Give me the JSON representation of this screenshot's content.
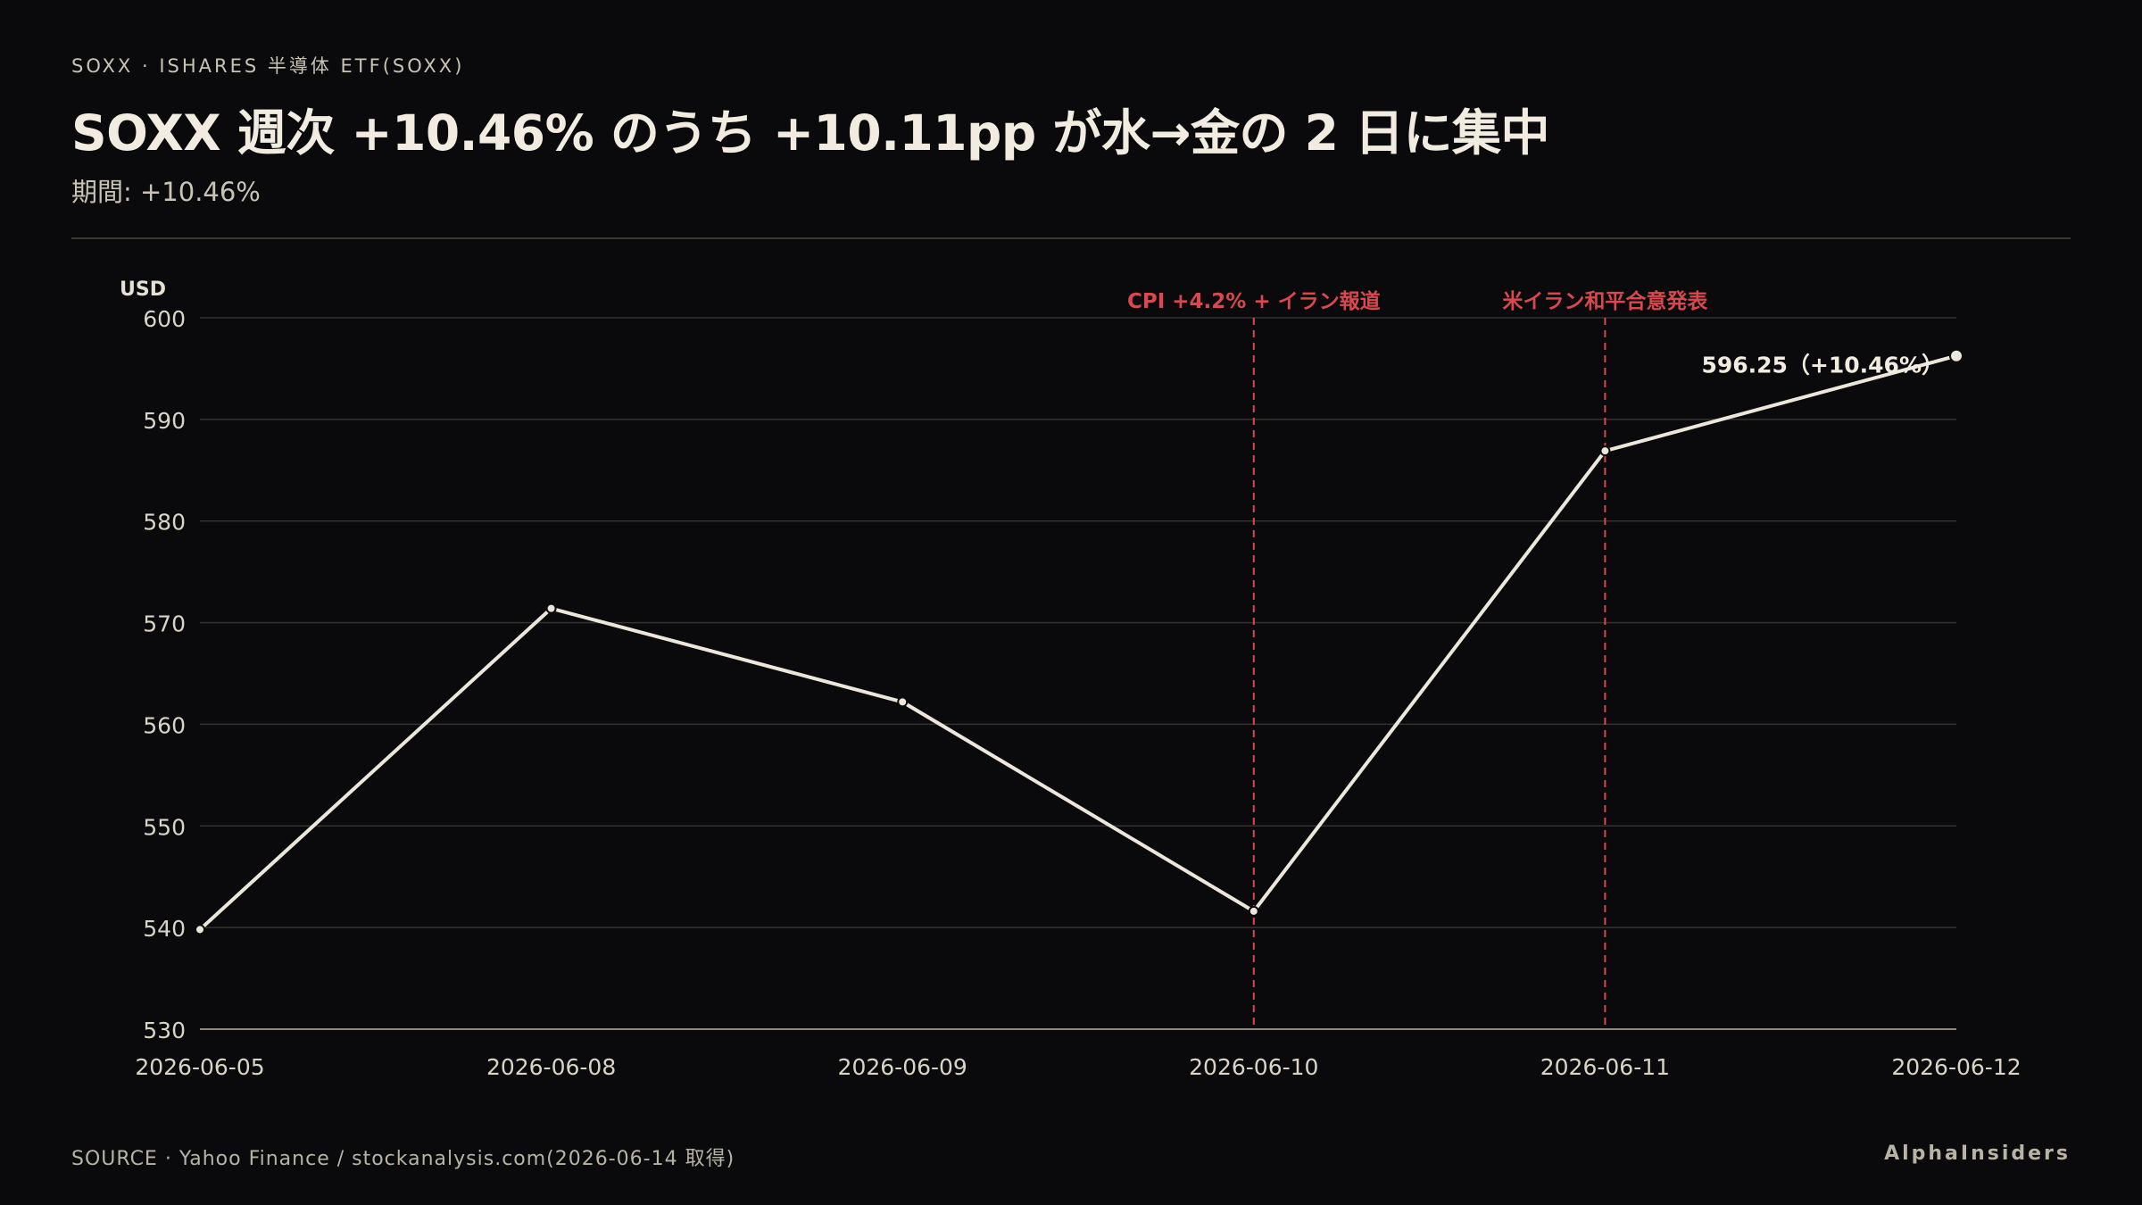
{
  "header": {
    "kicker": "SOXX · ISHARES 半導体 ETF(SOXX)",
    "title": "SOXX 週次 +10.46% のうち +10.11pp が水→金の 2 日に集中",
    "subtitle": "期間: +10.46%"
  },
  "footer": {
    "source": "SOURCE · Yahoo Finance / stockanalysis.com(2026-06-14 取得)",
    "brand": "AlphaInsiders"
  },
  "colors": {
    "background": "#0a0a0d",
    "line": "#ece7da",
    "event": "#d8484c",
    "grid": "#34332f"
  },
  "chart_data": {
    "type": "line",
    "ylabel": "USD",
    "ylim": [
      530,
      600
    ],
    "yticks": [
      530,
      540,
      550,
      560,
      570,
      580,
      590,
      600
    ],
    "grid": true,
    "categories": [
      "2026-06-05",
      "2026-06-08",
      "2026-06-09",
      "2026-06-10",
      "2026-06-11",
      "2026-06-12"
    ],
    "series": [
      {
        "values": [
          539.8,
          571.4,
          562.2,
          541.6,
          586.9,
          596.25
        ]
      }
    ],
    "end_label": "596.25（+10.46%）",
    "events": [
      {
        "x": "2026-06-10",
        "label": "CPI +4.2% + イラン報道"
      },
      {
        "x": "2026-06-11",
        "label": "米イラン和平合意発表"
      }
    ]
  }
}
